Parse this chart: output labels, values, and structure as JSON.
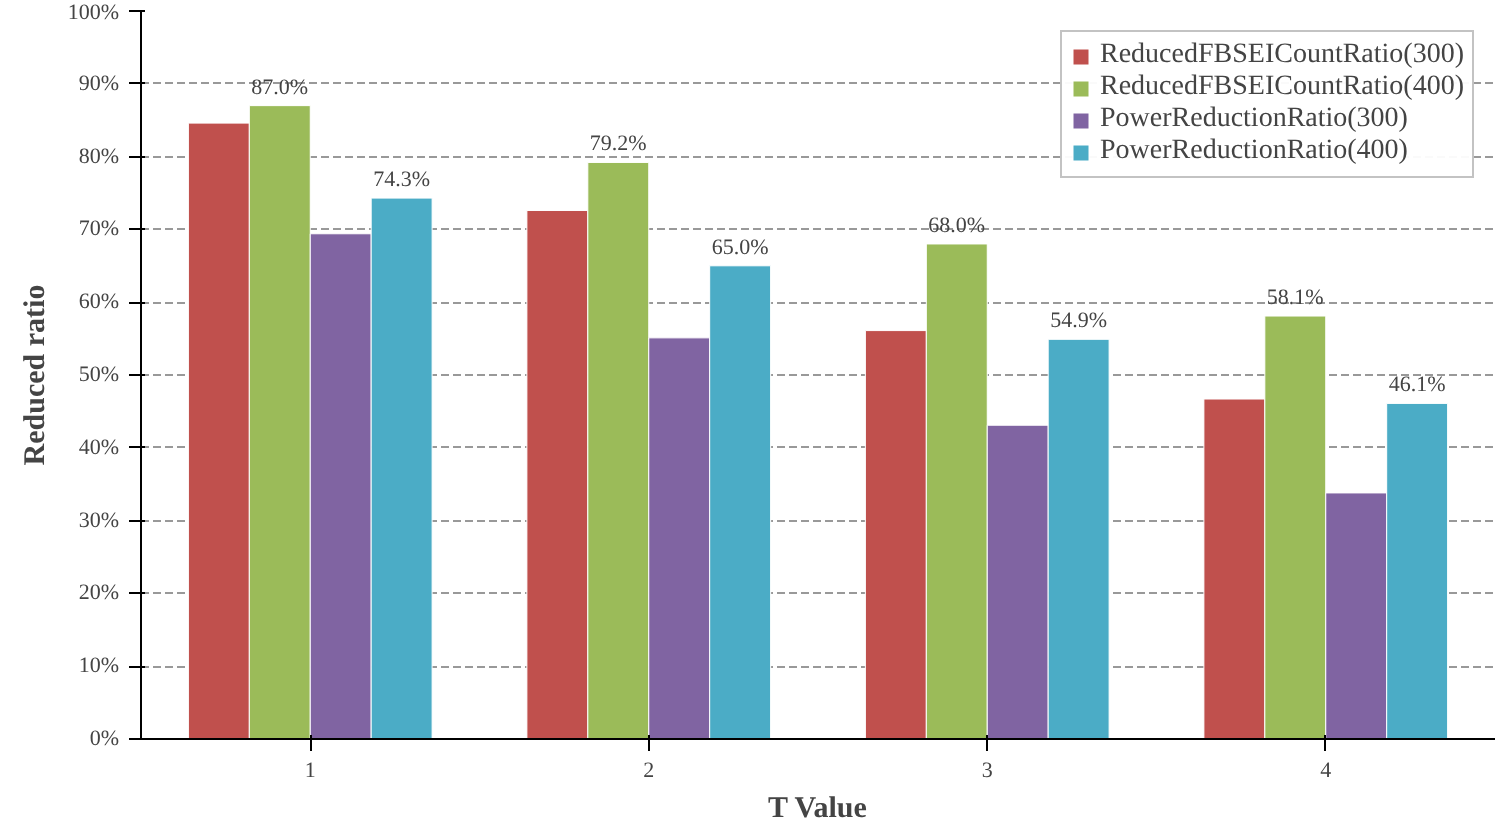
{
  "chart_data": {
    "type": "bar",
    "xlabel": "T Value",
    "ylabel": "Reduced ratio",
    "categories": [
      "1",
      "2",
      "3",
      "4"
    ],
    "series": [
      {
        "name": "ReducedFBSEICountRatio(300)",
        "color": "#c0504d",
        "values": [
          84.6,
          72.6,
          56.1,
          46.7
        ]
      },
      {
        "name": "ReducedFBSEICountRatio(400)",
        "color": "#9bbb59",
        "values": [
          87.0,
          79.2,
          68.0,
          58.1
        ],
        "value_labels": [
          "87.0%",
          "79.2%",
          "68.0%",
          "58.1%"
        ]
      },
      {
        "name": "PowerReductionRatio(300)",
        "color": "#8064a2",
        "values": [
          69.4,
          55.1,
          43.1,
          33.8
        ]
      },
      {
        "name": "PowerReductionRatio(400)",
        "color": "#4bacc6",
        "values": [
          74.3,
          65.0,
          54.9,
          46.1
        ],
        "value_labels": [
          "74.3%",
          "65.0%",
          "54.9%",
          "46.1%"
        ]
      }
    ],
    "ylim": [
      0,
      100
    ],
    "yticks": [
      {
        "value": 0,
        "label": "0%"
      },
      {
        "value": 10,
        "label": "10%"
      },
      {
        "value": 20,
        "label": "20%"
      },
      {
        "value": 30,
        "label": "30%"
      },
      {
        "value": 40,
        "label": "40%"
      },
      {
        "value": 50,
        "label": "50%"
      },
      {
        "value": 60,
        "label": "60%"
      },
      {
        "value": 70,
        "label": "70%"
      },
      {
        "value": 80,
        "label": "80%"
      },
      {
        "value": 90,
        "label": "90%"
      },
      {
        "value": 100,
        "label": "100%"
      }
    ],
    "grid": "y",
    "legend": "top right"
  }
}
